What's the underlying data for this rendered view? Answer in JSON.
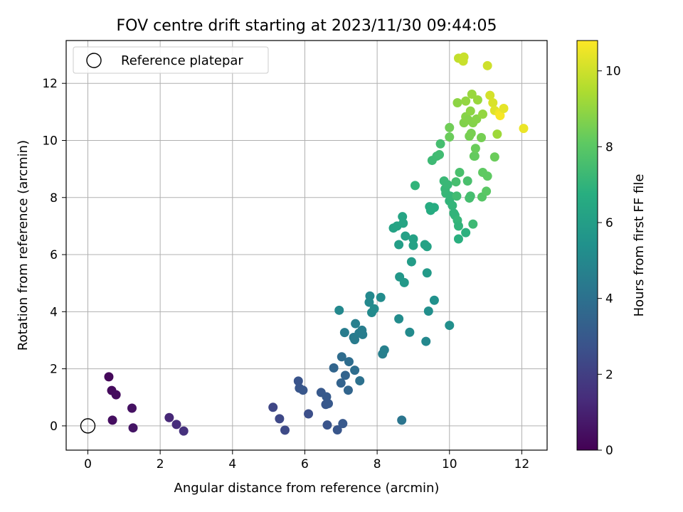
{
  "chart_data": {
    "type": "scatter",
    "title": "FOV centre drift starting at 2023/11/30 09:44:05",
    "xlabel": "Angular distance from reference (arcmin)",
    "ylabel": "Rotation from reference (arcmin)",
    "xlim": [
      -0.6,
      12.7
    ],
    "ylim": [
      -0.85,
      13.5
    ],
    "xticks": [
      0,
      2,
      4,
      6,
      8,
      10,
      12
    ],
    "yticks": [
      0,
      2,
      4,
      6,
      8,
      10,
      12
    ],
    "grid": true,
    "legend": {
      "position": "top-left",
      "entries": [
        "Reference platepar"
      ]
    },
    "reference_point": {
      "x": 0,
      "y": 0
    },
    "colorbar": {
      "label": "Hours from first FF file",
      "min": 0,
      "max": 10.8,
      "ticks": [
        0,
        2,
        4,
        6,
        8,
        10
      ],
      "colormap": "viridis"
    },
    "points": [
      {
        "x": 0.58,
        "y": 1.72,
        "h": 0.2
      },
      {
        "x": 0.66,
        "y": 1.24,
        "h": 0.3
      },
      {
        "x": 0.78,
        "y": 1.09,
        "h": 0.35
      },
      {
        "x": 0.68,
        "y": 0.2,
        "h": 0.4
      },
      {
        "x": 1.22,
        "y": 0.62,
        "h": 0.5
      },
      {
        "x": 1.25,
        "y": -0.07,
        "h": 0.6
      },
      {
        "x": 2.25,
        "y": 0.29,
        "h": 1.2
      },
      {
        "x": 2.45,
        "y": 0.05,
        "h": 1.35
      },
      {
        "x": 2.65,
        "y": -0.18,
        "h": 1.5
      },
      {
        "x": 5.12,
        "y": 0.65,
        "h": 2.3
      },
      {
        "x": 5.3,
        "y": 0.25,
        "h": 2.35
      },
      {
        "x": 5.45,
        "y": -0.15,
        "h": 2.4
      },
      {
        "x": 5.82,
        "y": 1.57,
        "h": 2.8
      },
      {
        "x": 5.85,
        "y": 1.32,
        "h": 2.85
      },
      {
        "x": 5.95,
        "y": 1.25,
        "h": 2.9
      },
      {
        "x": 6.1,
        "y": 0.42,
        "h": 2.6
      },
      {
        "x": 6.45,
        "y": 1.17,
        "h": 3.0
      },
      {
        "x": 6.6,
        "y": 1.02,
        "h": 3.05
      },
      {
        "x": 6.58,
        "y": 0.75,
        "h": 2.9
      },
      {
        "x": 6.65,
        "y": 0.78,
        "h": 3.0
      },
      {
        "x": 6.62,
        "y": 0.03,
        "h": 2.8
      },
      {
        "x": 6.9,
        "y": -0.14,
        "h": 2.85
      },
      {
        "x": 7.05,
        "y": 0.08,
        "h": 3.0
      },
      {
        "x": 6.8,
        "y": 2.03,
        "h": 3.5
      },
      {
        "x": 7.0,
        "y": 1.5,
        "h": 3.4
      },
      {
        "x": 7.12,
        "y": 1.77,
        "h": 3.45
      },
      {
        "x": 7.2,
        "y": 1.25,
        "h": 3.5
      },
      {
        "x": 7.02,
        "y": 2.42,
        "h": 3.8
      },
      {
        "x": 7.22,
        "y": 2.25,
        "h": 3.85
      },
      {
        "x": 7.38,
        "y": 1.95,
        "h": 3.9
      },
      {
        "x": 7.52,
        "y": 1.58,
        "h": 4.0
      },
      {
        "x": 6.95,
        "y": 4.05,
        "h": 5.0
      },
      {
        "x": 7.1,
        "y": 3.27,
        "h": 4.5
      },
      {
        "x": 7.35,
        "y": 3.1,
        "h": 4.4
      },
      {
        "x": 7.38,
        "y": 3.02,
        "h": 4.45
      },
      {
        "x": 7.4,
        "y": 3.58,
        "h": 4.6
      },
      {
        "x": 7.5,
        "y": 3.25,
        "h": 4.5
      },
      {
        "x": 7.58,
        "y": 3.35,
        "h": 4.55
      },
      {
        "x": 7.6,
        "y": 3.2,
        "h": 4.55
      },
      {
        "x": 7.8,
        "y": 4.55,
        "h": 5.0
      },
      {
        "x": 7.78,
        "y": 4.33,
        "h": 5.05
      },
      {
        "x": 7.85,
        "y": 3.97,
        "h": 5.1
      },
      {
        "x": 7.92,
        "y": 4.1,
        "h": 5.15
      },
      {
        "x": 8.1,
        "y": 4.5,
        "h": 5.2
      },
      {
        "x": 8.15,
        "y": 2.52,
        "h": 4.6
      },
      {
        "x": 8.2,
        "y": 2.66,
        "h": 4.65
      },
      {
        "x": 8.6,
        "y": 3.75,
        "h": 5.2
      },
      {
        "x": 8.9,
        "y": 3.28,
        "h": 5.1
      },
      {
        "x": 9.35,
        "y": 2.96,
        "h": 5.0
      },
      {
        "x": 8.68,
        "y": 0.2,
        "h": 4.2
      },
      {
        "x": 9.42,
        "y": 4.02,
        "h": 5.3
      },
      {
        "x": 9.58,
        "y": 4.4,
        "h": 5.4
      },
      {
        "x": 10.0,
        "y": 3.52,
        "h": 5.3
      },
      {
        "x": 8.62,
        "y": 5.22,
        "h": 5.7
      },
      {
        "x": 8.75,
        "y": 5.02,
        "h": 5.75
      },
      {
        "x": 9.38,
        "y": 5.36,
        "h": 5.8
      },
      {
        "x": 8.95,
        "y": 5.75,
        "h": 5.9
      },
      {
        "x": 8.45,
        "y": 6.93,
        "h": 6.2
      },
      {
        "x": 8.55,
        "y": 7.0,
        "h": 6.25
      },
      {
        "x": 8.7,
        "y": 7.33,
        "h": 6.3
      },
      {
        "x": 8.72,
        "y": 7.1,
        "h": 6.3
      },
      {
        "x": 8.6,
        "y": 6.35,
        "h": 6.0
      },
      {
        "x": 8.78,
        "y": 6.65,
        "h": 6.1
      },
      {
        "x": 9.0,
        "y": 6.55,
        "h": 6.15
      },
      {
        "x": 9.0,
        "y": 6.32,
        "h": 6.15
      },
      {
        "x": 9.32,
        "y": 6.35,
        "h": 6.2
      },
      {
        "x": 9.38,
        "y": 6.28,
        "h": 6.2
      },
      {
        "x": 9.05,
        "y": 8.42,
        "h": 7.0
      },
      {
        "x": 9.45,
        "y": 7.68,
        "h": 6.6
      },
      {
        "x": 9.48,
        "y": 7.55,
        "h": 6.6
      },
      {
        "x": 9.58,
        "y": 7.65,
        "h": 6.65
      },
      {
        "x": 9.52,
        "y": 9.3,
        "h": 7.3
      },
      {
        "x": 9.65,
        "y": 9.45,
        "h": 7.35
      },
      {
        "x": 9.72,
        "y": 9.5,
        "h": 7.4
      },
      {
        "x": 9.75,
        "y": 9.88,
        "h": 7.5
      },
      {
        "x": 9.85,
        "y": 8.58,
        "h": 7.2
      },
      {
        "x": 9.88,
        "y": 8.3,
        "h": 7.15
      },
      {
        "x": 9.9,
        "y": 8.15,
        "h": 7.15
      },
      {
        "x": 9.95,
        "y": 8.45,
        "h": 7.2
      },
      {
        "x": 10.0,
        "y": 7.88,
        "h": 7.0
      },
      {
        "x": 10.02,
        "y": 8.05,
        "h": 7.1
      },
      {
        "x": 10.08,
        "y": 7.72,
        "h": 7.05
      },
      {
        "x": 10.12,
        "y": 7.45,
        "h": 7.0
      },
      {
        "x": 10.15,
        "y": 7.38,
        "h": 7.0
      },
      {
        "x": 10.18,
        "y": 8.55,
        "h": 7.5
      },
      {
        "x": 10.2,
        "y": 8.05,
        "h": 7.4
      },
      {
        "x": 10.22,
        "y": 7.2,
        "h": 7.1
      },
      {
        "x": 10.25,
        "y": 7.0,
        "h": 7.0
      },
      {
        "x": 10.28,
        "y": 8.88,
        "h": 7.6
      },
      {
        "x": 10.25,
        "y": 6.55,
        "h": 6.8
      },
      {
        "x": 10.45,
        "y": 6.77,
        "h": 6.85
      },
      {
        "x": 10.5,
        "y": 8.58,
        "h": 7.6
      },
      {
        "x": 10.55,
        "y": 7.98,
        "h": 7.5
      },
      {
        "x": 10.58,
        "y": 8.05,
        "h": 7.5
      },
      {
        "x": 10.65,
        "y": 7.07,
        "h": 7.3
      },
      {
        "x": 10.0,
        "y": 10.45,
        "h": 8.4
      },
      {
        "x": 10.0,
        "y": 10.12,
        "h": 8.3
      },
      {
        "x": 10.22,
        "y": 11.32,
        "h": 8.9
      },
      {
        "x": 10.45,
        "y": 11.38,
        "h": 9.0
      },
      {
        "x": 10.4,
        "y": 10.62,
        "h": 8.7
      },
      {
        "x": 10.45,
        "y": 10.83,
        "h": 8.8
      },
      {
        "x": 10.52,
        "y": 10.72,
        "h": 8.75
      },
      {
        "x": 10.55,
        "y": 10.15,
        "h": 8.5
      },
      {
        "x": 10.6,
        "y": 10.25,
        "h": 8.55
      },
      {
        "x": 10.58,
        "y": 11.03,
        "h": 8.9
      },
      {
        "x": 10.62,
        "y": 11.62,
        "h": 9.1
      },
      {
        "x": 10.65,
        "y": 10.62,
        "h": 8.75
      },
      {
        "x": 10.68,
        "y": 9.45,
        "h": 8.2
      },
      {
        "x": 10.7,
        "y": 9.45,
        "h": 8.2
      },
      {
        "x": 10.72,
        "y": 9.72,
        "h": 8.3
      },
      {
        "x": 10.75,
        "y": 10.75,
        "h": 8.8
      },
      {
        "x": 10.78,
        "y": 11.42,
        "h": 9.1
      },
      {
        "x": 10.88,
        "y": 10.1,
        "h": 8.5
      },
      {
        "x": 10.92,
        "y": 10.92,
        "h": 9.0
      },
      {
        "x": 10.92,
        "y": 8.88,
        "h": 8.1
      },
      {
        "x": 10.9,
        "y": 8.02,
        "h": 7.9
      },
      {
        "x": 11.02,
        "y": 8.22,
        "h": 8.0
      },
      {
        "x": 11.05,
        "y": 8.75,
        "h": 8.1
      },
      {
        "x": 11.25,
        "y": 9.42,
        "h": 8.3
      },
      {
        "x": 11.32,
        "y": 10.22,
        "h": 9.2
      },
      {
        "x": 10.25,
        "y": 12.88,
        "h": 9.8
      },
      {
        "x": 10.4,
        "y": 12.92,
        "h": 9.9
      },
      {
        "x": 10.38,
        "y": 12.78,
        "h": 9.9
      },
      {
        "x": 11.05,
        "y": 12.62,
        "h": 10.0
      },
      {
        "x": 11.12,
        "y": 11.58,
        "h": 10.1
      },
      {
        "x": 11.2,
        "y": 11.32,
        "h": 10.2
      },
      {
        "x": 11.25,
        "y": 11.05,
        "h": 10.3
      },
      {
        "x": 11.38,
        "y": 10.95,
        "h": 10.6
      },
      {
        "x": 11.4,
        "y": 10.87,
        "h": 10.7
      },
      {
        "x": 11.5,
        "y": 11.12,
        "h": 10.4
      },
      {
        "x": 12.05,
        "y": 10.42,
        "h": 10.5
      }
    ]
  }
}
